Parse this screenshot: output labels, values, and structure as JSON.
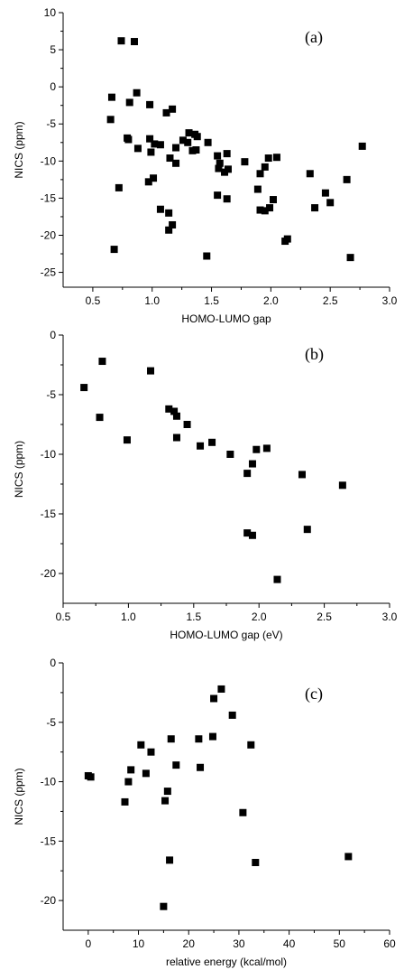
{
  "chart_data": [
    {
      "type": "scatter",
      "tag": "(a)",
      "xlabel": "HOMO-LUMO gap",
      "ylabel": "NICS (ppm)",
      "xlim": [
        0.25,
        3.0
      ],
      "ylim": [
        -27,
        10
      ],
      "xticks": [
        0.5,
        1.0,
        1.5,
        2.0,
        2.5,
        3.0
      ],
      "xtick_labels": [
        "0.5",
        "1.0",
        "1.5",
        "2.0",
        "2.5",
        "3.0"
      ],
      "yticks": [
        -25,
        -20,
        -15,
        -10,
        -5,
        0,
        5,
        10
      ],
      "ytick_labels": [
        "-25",
        "-20",
        "-15",
        "-10",
        "-5",
        "0",
        "5",
        "10"
      ],
      "marker_color": "#000000",
      "points": [
        [
          0.74,
          6.2
        ],
        [
          0.85,
          6.1
        ],
        [
          0.66,
          -1.4
        ],
        [
          0.87,
          -0.8
        ],
        [
          0.65,
          -4.4
        ],
        [
          0.81,
          -2.1
        ],
        [
          0.98,
          -2.4
        ],
        [
          0.79,
          -6.9
        ],
        [
          0.8,
          -7.1
        ],
        [
          0.88,
          -8.3
        ],
        [
          0.98,
          -7.0
        ],
        [
          1.02,
          -7.7
        ],
        [
          1.07,
          -7.8
        ],
        [
          0.99,
          -8.8
        ],
        [
          1.12,
          -3.5
        ],
        [
          1.17,
          -3.0
        ],
        [
          1.15,
          -9.6
        ],
        [
          1.2,
          -8.2
        ],
        [
          1.2,
          -10.3
        ],
        [
          1.26,
          -7.2
        ],
        [
          1.3,
          -7.5
        ],
        [
          1.31,
          -6.2
        ],
        [
          1.34,
          -8.6
        ],
        [
          1.36,
          -6.4
        ],
        [
          1.37,
          -8.5
        ],
        [
          1.38,
          -6.7
        ],
        [
          1.47,
          -7.5
        ],
        [
          1.55,
          -9.3
        ],
        [
          1.56,
          -11.0
        ],
        [
          1.57,
          -10.3
        ],
        [
          1.61,
          -11.5
        ],
        [
          1.63,
          -9.0
        ],
        [
          1.64,
          -11.1
        ],
        [
          1.63,
          -15.1
        ],
        [
          1.55,
          -14.6
        ],
        [
          1.78,
          -10.1
        ],
        [
          1.89,
          -13.8
        ],
        [
          1.91,
          -11.7
        ],
        [
          1.95,
          -10.8
        ],
        [
          1.98,
          -9.6
        ],
        [
          2.05,
          -9.5
        ],
        [
          2.02,
          -15.2
        ],
        [
          1.91,
          -16.6
        ],
        [
          1.95,
          -16.7
        ],
        [
          1.99,
          -16.3
        ],
        [
          2.12,
          -20.8
        ],
        [
          2.14,
          -20.5
        ],
        [
          0.72,
          -13.6
        ],
        [
          0.97,
          -12.8
        ],
        [
          1.01,
          -12.3
        ],
        [
          1.07,
          -16.5
        ],
        [
          1.14,
          -17.0
        ],
        [
          1.14,
          -19.3
        ],
        [
          1.17,
          -18.6
        ],
        [
          0.68,
          -21.9
        ],
        [
          1.46,
          -22.8
        ],
        [
          2.33,
          -11.7
        ],
        [
          2.37,
          -16.3
        ],
        [
          2.46,
          -14.3
        ],
        [
          2.5,
          -15.6
        ],
        [
          2.64,
          -12.5
        ],
        [
          2.67,
          -23.0
        ],
        [
          2.77,
          -8.0
        ]
      ]
    },
    {
      "type": "scatter",
      "tag": "(b)",
      "xlabel": "HOMO-LUMO gap (eV)",
      "ylabel": "NICS (ppm)",
      "xlim": [
        0.5,
        3.0
      ],
      "ylim": [
        -22.5,
        0
      ],
      "xticks": [
        0.5,
        1.0,
        1.5,
        2.0,
        2.5,
        3.0
      ],
      "xtick_labels": [
        "0.5",
        "1.0",
        "1.5",
        "2.0",
        "2.5",
        "3.0"
      ],
      "yticks": [
        -20,
        -15,
        -10,
        -5,
        0
      ],
      "ytick_labels": [
        "-20",
        "-15",
        "-10",
        "-5",
        "0"
      ],
      "marker_color": "#000000",
      "points": [
        [
          0.66,
          -4.4
        ],
        [
          0.78,
          -6.9
        ],
        [
          0.8,
          -2.2
        ],
        [
          0.99,
          -8.8
        ],
        [
          1.17,
          -3.0
        ],
        [
          1.31,
          -6.2
        ],
        [
          1.35,
          -6.4
        ],
        [
          1.37,
          -6.8
        ],
        [
          1.37,
          -8.6
        ],
        [
          1.45,
          -7.5
        ],
        [
          1.55,
          -9.3
        ],
        [
          1.64,
          -9.0
        ],
        [
          1.78,
          -10.0
        ],
        [
          1.91,
          -11.6
        ],
        [
          1.95,
          -10.8
        ],
        [
          1.98,
          -9.6
        ],
        [
          2.06,
          -9.5
        ],
        [
          1.91,
          -16.6
        ],
        [
          1.95,
          -16.8
        ],
        [
          2.14,
          -20.5
        ],
        [
          2.33,
          -11.7
        ],
        [
          2.37,
          -16.3
        ],
        [
          2.64,
          -12.6
        ]
      ]
    },
    {
      "type": "scatter",
      "tag": "(c)",
      "xlabel": "relative energy (kcal/mol)",
      "ylabel": "NICS (ppm)",
      "xlim": [
        -5,
        60
      ],
      "ylim": [
        -22.5,
        0
      ],
      "xticks": [
        0,
        10,
        20,
        30,
        40,
        50,
        60
      ],
      "xtick_labels": [
        "0",
        "10",
        "20",
        "30",
        "40",
        "50",
        "60"
      ],
      "yticks": [
        -20,
        -15,
        -10,
        -5,
        0
      ],
      "ytick_labels": [
        "-20",
        "-15",
        "-10",
        "-5",
        "0"
      ],
      "marker_color": "#000000",
      "points": [
        [
          0.0,
          -9.5
        ],
        [
          0.5,
          -9.6
        ],
        [
          7.3,
          -11.7
        ],
        [
          8.0,
          -10.0
        ],
        [
          8.5,
          -9.0
        ],
        [
          10.5,
          -6.9
        ],
        [
          11.5,
          -9.3
        ],
        [
          12.5,
          -7.5
        ],
        [
          15.0,
          -20.5
        ],
        [
          15.3,
          -11.6
        ],
        [
          15.8,
          -10.8
        ],
        [
          16.2,
          -16.6
        ],
        [
          16.5,
          -6.4
        ],
        [
          17.5,
          -8.6
        ],
        [
          22.0,
          -6.4
        ],
        [
          22.3,
          -8.8
        ],
        [
          24.8,
          -6.2
        ],
        [
          25.0,
          -3.0
        ],
        [
          26.5,
          -2.2
        ],
        [
          28.7,
          -4.4
        ],
        [
          30.8,
          -12.6
        ],
        [
          32.4,
          -6.9
        ],
        [
          33.3,
          -16.8
        ],
        [
          51.8,
          -16.3
        ]
      ]
    }
  ]
}
